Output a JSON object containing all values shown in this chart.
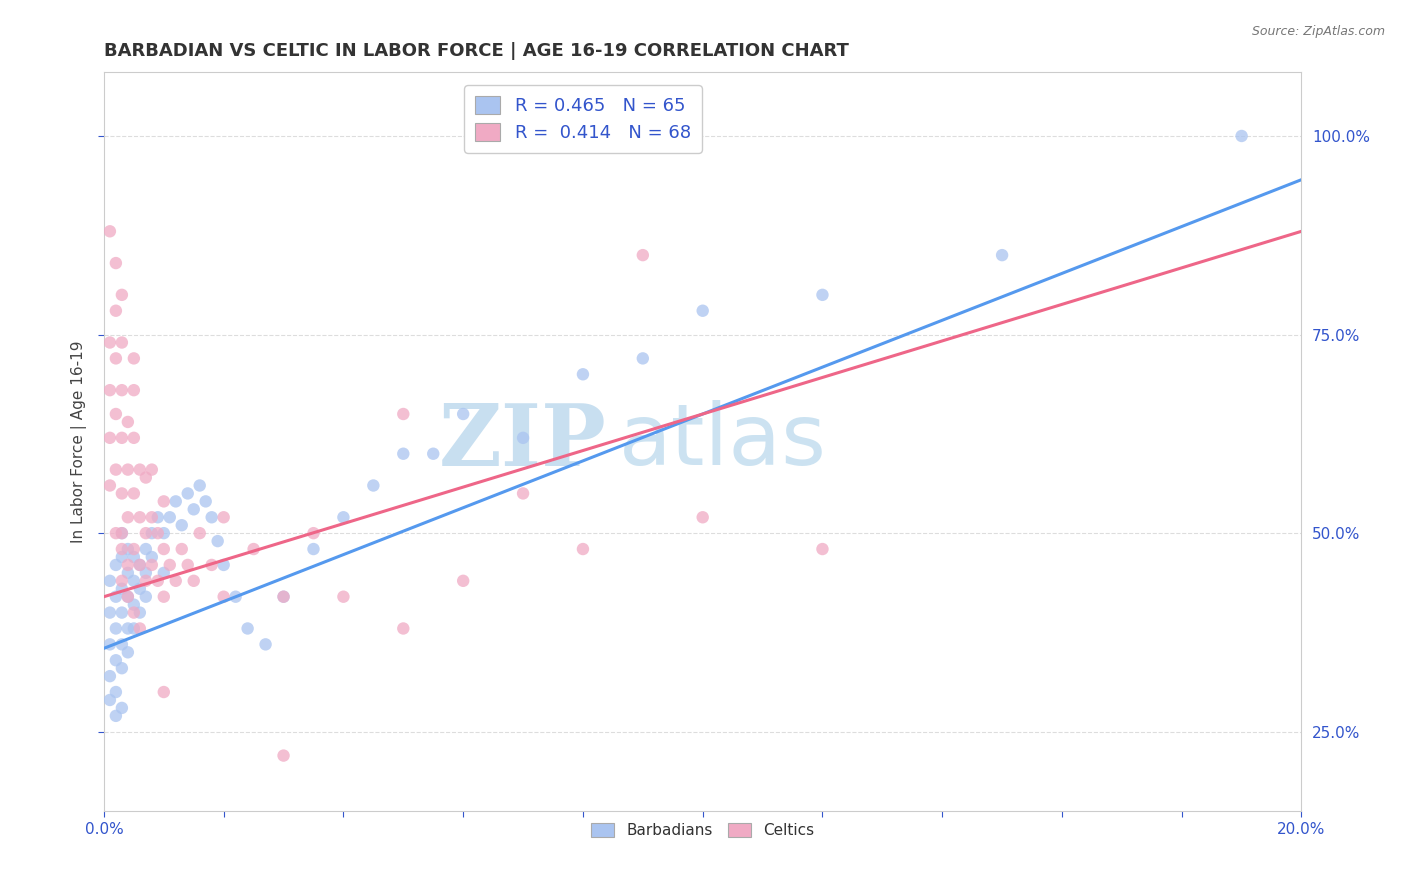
{
  "title": "BARBADIAN VS CELTIC IN LABOR FORCE | AGE 16-19 CORRELATION CHART",
  "source_text": "Source: ZipAtlas.com",
  "ylabel": "In Labor Force | Age 16-19",
  "xlim": [
    0.0,
    0.2
  ],
  "ylim": [
    0.15,
    1.08
  ],
  "xticks": [
    0.0,
    0.02,
    0.04,
    0.06,
    0.08,
    0.1,
    0.12,
    0.14,
    0.16,
    0.18,
    0.2
  ],
  "yticks": [
    0.25,
    0.5,
    0.75,
    1.0
  ],
  "ytick_labels": [
    "25.0%",
    "50.0%",
    "75.0%",
    "100.0%"
  ],
  "xtick_labels": [
    "0.0%",
    "",
    "",
    "",
    "",
    "",
    "",
    "",
    "",
    "",
    "20.0%"
  ],
  "barbadian_color": "#aac4f0",
  "celtic_color": "#f0aac4",
  "barbadian_line_color": "#5599ee",
  "celtic_line_color": "#ee6688",
  "R_barbadian": 0.465,
  "N_barbadian": 65,
  "R_celtic": 0.414,
  "N_celtic": 68,
  "legend_R_N_color": "#3355cc",
  "barbadian_line": {
    "x0": 0.0,
    "y0": 0.355,
    "x1": 0.2,
    "y1": 0.945
  },
  "celtic_line": {
    "x0": 0.0,
    "y0": 0.42,
    "x1": 0.2,
    "y1": 0.88
  },
  "barbadian_scatter": {
    "x": [
      0.001,
      0.001,
      0.001,
      0.001,
      0.001,
      0.002,
      0.002,
      0.002,
      0.002,
      0.002,
      0.002,
      0.003,
      0.003,
      0.003,
      0.003,
      0.003,
      0.003,
      0.003,
      0.004,
      0.004,
      0.004,
      0.004,
      0.004,
      0.005,
      0.005,
      0.005,
      0.005,
      0.006,
      0.006,
      0.006,
      0.007,
      0.007,
      0.007,
      0.008,
      0.008,
      0.009,
      0.01,
      0.01,
      0.011,
      0.012,
      0.013,
      0.014,
      0.015,
      0.016,
      0.017,
      0.018,
      0.019,
      0.02,
      0.022,
      0.024,
      0.027,
      0.03,
      0.035,
      0.04,
      0.045,
      0.05,
      0.055,
      0.06,
      0.07,
      0.08,
      0.09,
      0.1,
      0.12,
      0.15,
      0.19
    ],
    "y": [
      0.36,
      0.4,
      0.44,
      0.32,
      0.29,
      0.38,
      0.42,
      0.46,
      0.34,
      0.3,
      0.27,
      0.4,
      0.43,
      0.47,
      0.5,
      0.36,
      0.33,
      0.28,
      0.42,
      0.45,
      0.48,
      0.38,
      0.35,
      0.44,
      0.47,
      0.41,
      0.38,
      0.46,
      0.43,
      0.4,
      0.48,
      0.45,
      0.42,
      0.5,
      0.47,
      0.52,
      0.5,
      0.45,
      0.52,
      0.54,
      0.51,
      0.55,
      0.53,
      0.56,
      0.54,
      0.52,
      0.49,
      0.46,
      0.42,
      0.38,
      0.36,
      0.42,
      0.48,
      0.52,
      0.56,
      0.6,
      0.6,
      0.65,
      0.62,
      0.7,
      0.72,
      0.78,
      0.8,
      0.85,
      1.0
    ]
  },
  "celtic_scatter": {
    "x": [
      0.001,
      0.001,
      0.001,
      0.001,
      0.002,
      0.002,
      0.002,
      0.002,
      0.002,
      0.003,
      0.003,
      0.003,
      0.003,
      0.003,
      0.003,
      0.003,
      0.004,
      0.004,
      0.004,
      0.004,
      0.004,
      0.005,
      0.005,
      0.005,
      0.005,
      0.005,
      0.006,
      0.006,
      0.006,
      0.006,
      0.007,
      0.007,
      0.007,
      0.008,
      0.008,
      0.008,
      0.009,
      0.009,
      0.01,
      0.01,
      0.01,
      0.011,
      0.012,
      0.013,
      0.014,
      0.015,
      0.016,
      0.018,
      0.02,
      0.025,
      0.03,
      0.035,
      0.04,
      0.05,
      0.06,
      0.08,
      0.1,
      0.12,
      0.05,
      0.07,
      0.09,
      0.03,
      0.02,
      0.01,
      0.005,
      0.003,
      0.002,
      0.001
    ],
    "y": [
      0.56,
      0.62,
      0.68,
      0.74,
      0.58,
      0.65,
      0.72,
      0.5,
      0.78,
      0.48,
      0.55,
      0.62,
      0.68,
      0.44,
      0.5,
      0.74,
      0.46,
      0.52,
      0.58,
      0.64,
      0.42,
      0.48,
      0.55,
      0.62,
      0.68,
      0.4,
      0.46,
      0.52,
      0.58,
      0.38,
      0.44,
      0.5,
      0.57,
      0.46,
      0.52,
      0.58,
      0.44,
      0.5,
      0.42,
      0.48,
      0.54,
      0.46,
      0.44,
      0.48,
      0.46,
      0.44,
      0.5,
      0.46,
      0.52,
      0.48,
      0.42,
      0.5,
      0.42,
      0.38,
      0.44,
      0.48,
      0.52,
      0.48,
      0.65,
      0.55,
      0.85,
      0.22,
      0.42,
      0.3,
      0.72,
      0.8,
      0.84,
      0.88
    ]
  },
  "background_color": "#ffffff",
  "grid_color": "#dddddd",
  "tick_color": "#3355cc",
  "watermark_zip": "ZIP",
  "watermark_atlas": "atlas",
  "watermark_color": "#c8dff0",
  "title_fontsize": 13,
  "axis_label_fontsize": 11,
  "tick_fontsize": 11
}
